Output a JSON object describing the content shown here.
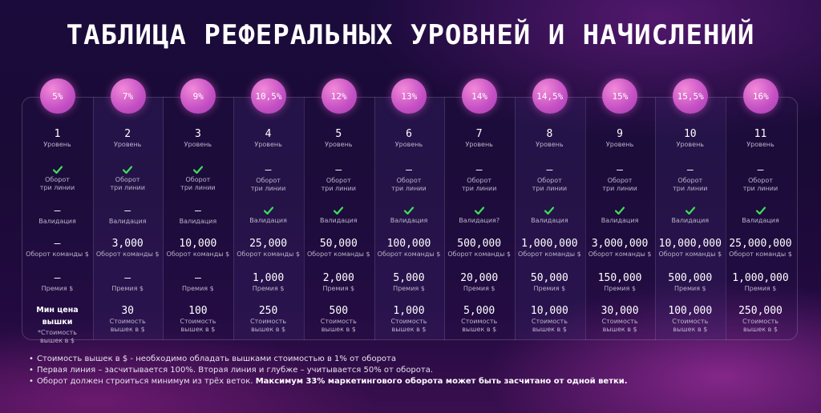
{
  "title": "ТАБЛИЦА РЕФЕРАЛЬНЫХ УРОВНЕЙ И НАЧИСЛЕНИЙ",
  "labels": {
    "level": "Уровень",
    "turnover_three_lines": "Оборот\nтри линии",
    "validation": "Валидация",
    "team_turnover": "Оборот команды $",
    "bonus": "Премия $",
    "min_tower_header": "Мин цена вышки",
    "min_tower_sub": "*Стоимость\nвышек в $",
    "tower_cost": "Стоимость\nвышек в $"
  },
  "levels": [
    {
      "percent": "5%",
      "level": "1",
      "turnover_three_lines": "check",
      "validation": "–",
      "validation_label": "Валидация",
      "team_turnover": "–",
      "bonus": "–",
      "tower_cost": null
    },
    {
      "percent": "7%",
      "level": "2",
      "turnover_three_lines": "check",
      "validation": "–",
      "validation_label": "Валидация",
      "team_turnover": "3,000",
      "bonus": "–",
      "tower_cost": "30"
    },
    {
      "percent": "9%",
      "level": "3",
      "turnover_three_lines": "check",
      "validation": "–",
      "validation_label": "Валидация",
      "team_turnover": "10,000",
      "bonus": "–",
      "tower_cost": "100"
    },
    {
      "percent": "10,5%",
      "level": "4",
      "turnover_three_lines": "–",
      "validation": "check",
      "validation_label": "Валидация",
      "team_turnover": "25,000",
      "bonus": "1,000",
      "tower_cost": "250"
    },
    {
      "percent": "12%",
      "level": "5",
      "turnover_three_lines": "–",
      "validation": "check",
      "validation_label": "Валидация",
      "team_turnover": "50,000",
      "bonus": "2,000",
      "tower_cost": "500"
    },
    {
      "percent": "13%",
      "level": "6",
      "turnover_three_lines": "–",
      "validation": "check",
      "validation_label": "Валидация",
      "team_turnover": "100,000",
      "bonus": "5,000",
      "tower_cost": "1,000"
    },
    {
      "percent": "14%",
      "level": "7",
      "turnover_three_lines": "–",
      "validation": "check",
      "validation_label": "Валидация?",
      "team_turnover": "500,000",
      "bonus": "20,000",
      "tower_cost": "5,000"
    },
    {
      "percent": "14,5%",
      "level": "8",
      "turnover_three_lines": "–",
      "validation": "check",
      "validation_label": "Валидация",
      "team_turnover": "1,000,000",
      "bonus": "50,000",
      "tower_cost": "10,000"
    },
    {
      "percent": "15%",
      "level": "9",
      "turnover_three_lines": "–",
      "validation": "check",
      "validation_label": "Валидация",
      "team_turnover": "3,000,000",
      "bonus": "150,000",
      "tower_cost": "30,000"
    },
    {
      "percent": "15,5%",
      "level": "10",
      "turnover_three_lines": "–",
      "validation": "check",
      "validation_label": "Валидация",
      "team_turnover": "10,000,000",
      "bonus": "500,000",
      "tower_cost": "100,000"
    },
    {
      "percent": "16%",
      "level": "11",
      "turnover_three_lines": "–",
      "validation": "check",
      "validation_label": "Валидация",
      "team_turnover": "25,000,000",
      "bonus": "1,000,000",
      "tower_cost": "250,000"
    }
  ],
  "notes": [
    {
      "text": "Стоимость вышек в $ - необходимо обладать вышками стоимостью в 1% от оборота",
      "bold": ""
    },
    {
      "text": "Первая линия – засчитывается 100%. Вторая линия и глубже – учитывается 50% от оборота.",
      "bold": ""
    },
    {
      "text": "Оборот должен строиться минимум из трёх веток. ",
      "bold": "Максимум 33% маркетингового оборота может быть засчитано от одной ветки."
    }
  ],
  "colors": {
    "check": "#3ee05a",
    "badge": "#c44fc4"
  },
  "icons": {
    "check": "checkmark-icon"
  }
}
